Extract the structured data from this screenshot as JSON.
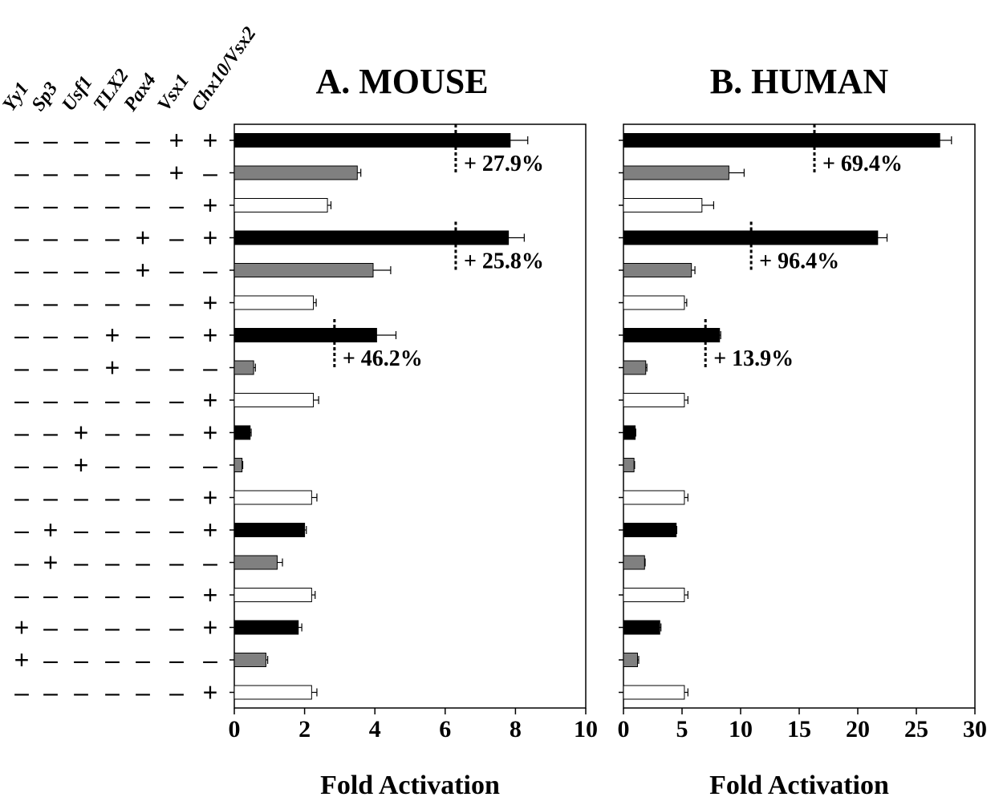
{
  "chart_data": {
    "type": "bar",
    "factors": [
      "Yy1",
      "Sp3",
      "Usf1",
      "TLX2",
      "Pax4",
      "Vsx1",
      "Chx10/Vsx2"
    ],
    "rows": [
      {
        "signs": [
          "-",
          "-",
          "-",
          "-",
          "-",
          "+",
          "+"
        ],
        "group": "combo"
      },
      {
        "signs": [
          "-",
          "-",
          "-",
          "-",
          "-",
          "+",
          "-"
        ],
        "group": "factor"
      },
      {
        "signs": [
          "-",
          "-",
          "-",
          "-",
          "-",
          "-",
          "+"
        ],
        "group": "chx10"
      },
      {
        "signs": [
          "-",
          "-",
          "-",
          "-",
          "+",
          "-",
          "+"
        ],
        "group": "combo"
      },
      {
        "signs": [
          "-",
          "-",
          "-",
          "-",
          "+",
          "-",
          "-"
        ],
        "group": "factor"
      },
      {
        "signs": [
          "-",
          "-",
          "-",
          "-",
          "-",
          "-",
          "+"
        ],
        "group": "chx10"
      },
      {
        "signs": [
          "-",
          "-",
          "-",
          "+",
          "-",
          "-",
          "+"
        ],
        "group": "combo"
      },
      {
        "signs": [
          "-",
          "-",
          "-",
          "+",
          "-",
          "-",
          "-"
        ],
        "group": "factor"
      },
      {
        "signs": [
          "-",
          "-",
          "-",
          "-",
          "-",
          "-",
          "+"
        ],
        "group": "chx10"
      },
      {
        "signs": [
          "-",
          "-",
          "+",
          "-",
          "-",
          "-",
          "+"
        ],
        "group": "combo"
      },
      {
        "signs": [
          "-",
          "-",
          "+",
          "-",
          "-",
          "-",
          "-"
        ],
        "group": "factor"
      },
      {
        "signs": [
          "-",
          "-",
          "-",
          "-",
          "-",
          "-",
          "+"
        ],
        "group": "chx10"
      },
      {
        "signs": [
          "-",
          "+",
          "-",
          "-",
          "-",
          "-",
          "+"
        ],
        "group": "combo"
      },
      {
        "signs": [
          "-",
          "+",
          "-",
          "-",
          "-",
          "-",
          "-"
        ],
        "group": "factor"
      },
      {
        "signs": [
          "-",
          "-",
          "-",
          "-",
          "-",
          "-",
          "+"
        ],
        "group": "chx10"
      },
      {
        "signs": [
          "+",
          "-",
          "-",
          "-",
          "-",
          "-",
          "+"
        ],
        "group": "combo"
      },
      {
        "signs": [
          "+",
          "-",
          "-",
          "-",
          "-",
          "-",
          "-"
        ],
        "group": "factor"
      },
      {
        "signs": [
          "-",
          "-",
          "-",
          "-",
          "-",
          "-",
          "+"
        ],
        "group": "chx10"
      }
    ],
    "group_colors": {
      "combo": "#000000",
      "factor": "#808080",
      "chx10": "#ffffff"
    },
    "panels": [
      {
        "title": "A. MOUSE",
        "xlabel": "Fold Activation",
        "xlim": [
          0,
          10
        ],
        "ticks": [
          0,
          2,
          4,
          6,
          8,
          10
        ],
        "values": [
          7.85,
          3.5,
          2.65,
          7.8,
          3.95,
          2.25,
          4.05,
          0.55,
          2.25,
          0.45,
          0.22,
          2.2,
          2.0,
          1.22,
          2.2,
          1.82,
          0.9,
          2.2
        ],
        "errors": [
          0.5,
          0.1,
          0.1,
          0.45,
          0.5,
          0.08,
          0.55,
          0.05,
          0.15,
          0.03,
          0.02,
          0.15,
          0.05,
          0.15,
          0.1,
          0.1,
          0.05,
          0.15
        ],
        "annotations": [
          {
            "row": 0,
            "x": 6.3,
            "text": "+ 27.9%"
          },
          {
            "row": 3,
            "x": 6.3,
            "text": "+ 25.8%"
          },
          {
            "row": 6,
            "x": 2.85,
            "text": "+ 46.2%"
          }
        ]
      },
      {
        "title": "B. HUMAN",
        "xlabel": "Fold Activation",
        "xlim": [
          0,
          30
        ],
        "ticks": [
          0,
          5,
          10,
          15,
          20,
          25,
          30
        ],
        "values": [
          27,
          9,
          6.7,
          21.7,
          5.8,
          5.2,
          8.2,
          1.9,
          5.2,
          1.0,
          0.9,
          5.2,
          4.5,
          1.8,
          5.2,
          3.1,
          1.2,
          5.2
        ],
        "errors": [
          1.0,
          1.3,
          1.0,
          0.8,
          0.3,
          0.2,
          0.1,
          0.1,
          0.3,
          0.05,
          0.05,
          0.3,
          0.05,
          0.05,
          0.3,
          0.1,
          0.1,
          0.3
        ],
        "annotations": [
          {
            "row": 0,
            "x": 16.3,
            "text": "+ 69.4%"
          },
          {
            "row": 3,
            "x": 10.9,
            "text": "+ 96.4%"
          },
          {
            "row": 6,
            "x": 7.0,
            "text": "+ 13.9%"
          }
        ]
      }
    ]
  }
}
